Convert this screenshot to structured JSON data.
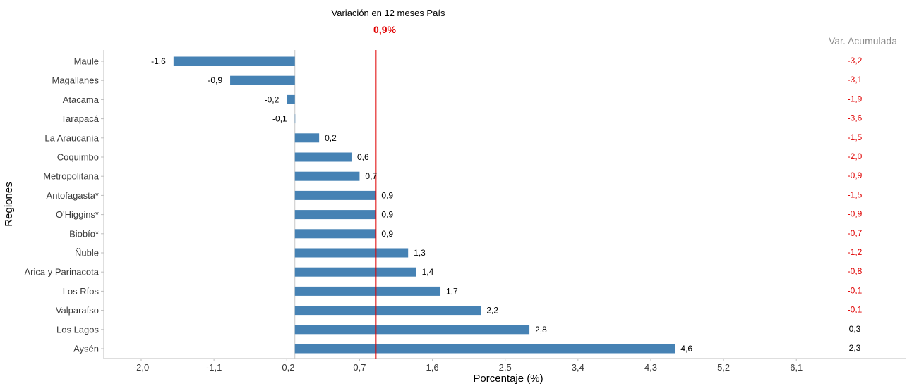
{
  "chart_data": {
    "type": "bar",
    "orientation": "horizontal",
    "title": "Variación en 12 meses País",
    "reference_value_label": "0,9%",
    "reference_value": 0.9,
    "xlabel": "Porcentaje (%)",
    "ylabel": "Regiones",
    "xlim": [
      -2.5,
      7.0
    ],
    "x_ticks": [
      -2.0,
      -1.1,
      -0.2,
      0.7,
      1.6,
      2.5,
      3.4,
      4.3,
      5.2,
      6.1
    ],
    "x_tick_labels": [
      "-2,0",
      "-1,1",
      "-0,2",
      "0,7",
      "1,6",
      "2,5",
      "3,4",
      "4,3",
      "5,2",
      "6,1"
    ],
    "baseline": -0.1,
    "grid": false,
    "bar_color": "#4682B4",
    "reference_line_color": "#E00000",
    "cumulative_header": "Var. Acumulada",
    "cumulative_header_color": "#8C8C8C",
    "negative_color": "#E00000",
    "positive_color": "#000000",
    "categories": [
      "Maule",
      "Magallanes",
      "Atacama",
      "Tarapacá",
      "La Araucanía",
      "Coquimbo",
      "Metropolitana",
      "Antofagasta*",
      "O'Higgins*",
      "Biobío*",
      "Ñuble",
      "Arica y Parinacota",
      "Los Ríos",
      "Valparaíso",
      "Los Lagos",
      "Aysén"
    ],
    "values": [
      -1.6,
      -0.9,
      -0.2,
      -0.1,
      0.2,
      0.6,
      0.7,
      0.9,
      0.9,
      0.9,
      1.3,
      1.4,
      1.7,
      2.2,
      2.8,
      4.6
    ],
    "value_labels": [
      "-1,6",
      "-0,9",
      "-0,2",
      "-0,1",
      "0,2",
      "0,6",
      "0,7",
      "0,9",
      "0,9",
      "0,9",
      "1,3",
      "1,4",
      "1,7",
      "2,2",
      "2,8",
      "4,6"
    ],
    "cumulative_values": [
      -3.2,
      -3.1,
      -1.9,
      -3.6,
      -1.5,
      -2.0,
      -0.9,
      -1.5,
      -0.9,
      -0.7,
      -1.2,
      -0.8,
      -0.1,
      -0.1,
      0.3,
      2.3
    ],
    "cumulative_labels": [
      "-3,2",
      "-3,1",
      "-1,9",
      "-3,6",
      "-1,5",
      "-2,0",
      "-0,9",
      "-1,5",
      "-0,9",
      "-0,7",
      "-1,2",
      "-0,8",
      "-0,1",
      "-0,1",
      "0,3",
      "2,3"
    ]
  }
}
